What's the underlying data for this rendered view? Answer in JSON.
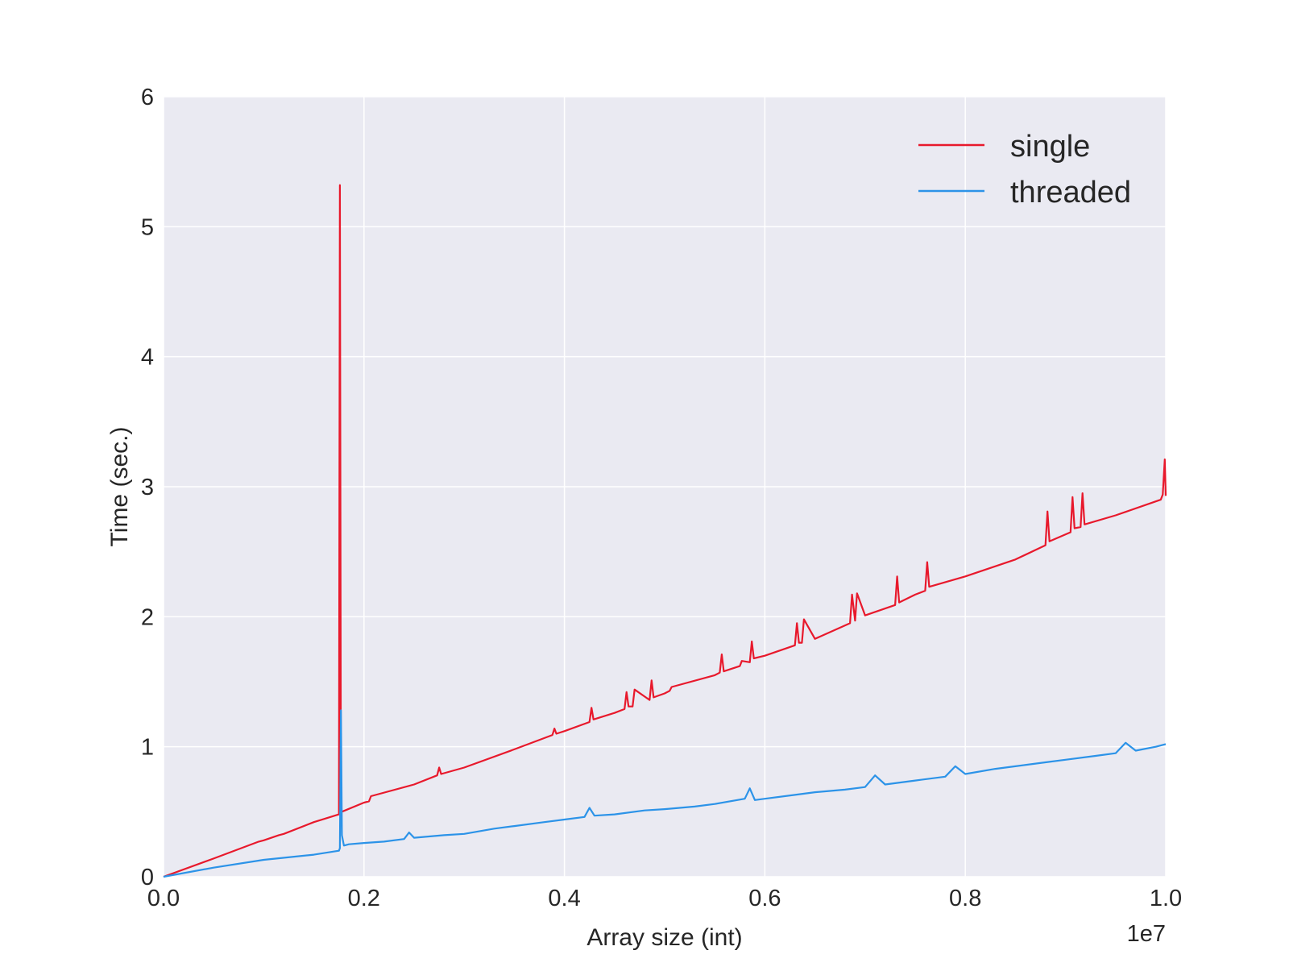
{
  "chart_data": {
    "type": "line",
    "title": "",
    "xlabel": "Array size (int)",
    "ylabel": "Time (sec.)",
    "x_offset_label": "1e7",
    "xlim": [
      0.0,
      1.0
    ],
    "ylim": [
      0,
      6
    ],
    "x_ticks": [
      "0.0",
      "0.2",
      "0.4",
      "0.6",
      "0.8",
      "1.0"
    ],
    "x_tick_values": [
      0.0,
      0.2,
      0.4,
      0.6,
      0.8,
      1.0
    ],
    "y_ticks": [
      "0",
      "1",
      "2",
      "3",
      "4",
      "5",
      "6"
    ],
    "y_tick_values": [
      0,
      1,
      2,
      3,
      4,
      5,
      6
    ],
    "grid": true,
    "legend_position": "top-right",
    "background_color": "#EAEAF2",
    "series": [
      {
        "name": "single",
        "color": "#E8192C",
        "x": [
          0.0,
          0.05,
          0.095,
          0.1,
          0.115,
          0.12,
          0.15,
          0.175,
          0.176,
          0.177,
          0.178,
          0.2,
          0.205,
          0.207,
          0.25,
          0.273,
          0.275,
          0.277,
          0.3,
          0.35,
          0.388,
          0.39,
          0.392,
          0.4,
          0.425,
          0.427,
          0.429,
          0.45,
          0.46,
          0.462,
          0.464,
          0.468,
          0.47,
          0.485,
          0.487,
          0.489,
          0.5,
          0.505,
          0.507,
          0.55,
          0.555,
          0.557,
          0.559,
          0.575,
          0.577,
          0.585,
          0.587,
          0.589,
          0.6,
          0.63,
          0.632,
          0.634,
          0.637,
          0.639,
          0.65,
          0.685,
          0.687,
          0.69,
          0.692,
          0.7,
          0.73,
          0.732,
          0.734,
          0.75,
          0.76,
          0.762,
          0.764,
          0.8,
          0.85,
          0.88,
          0.882,
          0.884,
          0.905,
          0.907,
          0.909,
          0.915,
          0.917,
          0.919,
          0.95,
          0.995,
          0.997,
          0.999,
          1.0
        ],
        "y": [
          0.0,
          0.14,
          0.27,
          0.28,
          0.32,
          0.33,
          0.42,
          0.48,
          5.32,
          0.49,
          0.5,
          0.57,
          0.58,
          0.62,
          0.71,
          0.78,
          0.84,
          0.79,
          0.84,
          0.98,
          1.09,
          1.14,
          1.1,
          1.12,
          1.19,
          1.3,
          1.21,
          1.26,
          1.29,
          1.42,
          1.31,
          1.31,
          1.44,
          1.36,
          1.51,
          1.38,
          1.41,
          1.43,
          1.46,
          1.55,
          1.57,
          1.71,
          1.58,
          1.62,
          1.66,
          1.65,
          1.81,
          1.68,
          1.7,
          1.78,
          1.95,
          1.8,
          1.8,
          1.98,
          1.83,
          1.95,
          2.17,
          1.97,
          2.18,
          2.01,
          2.09,
          2.31,
          2.11,
          2.17,
          2.2,
          2.42,
          2.23,
          2.31,
          2.44,
          2.55,
          2.81,
          2.58,
          2.65,
          2.92,
          2.68,
          2.69,
          2.95,
          2.71,
          2.78,
          2.9,
          2.94,
          3.21,
          2.93
        ]
      },
      {
        "name": "threaded",
        "color": "#2C93E8",
        "x": [
          0.0,
          0.05,
          0.1,
          0.15,
          0.175,
          0.176,
          0.177,
          0.178,
          0.18,
          0.185,
          0.2,
          0.22,
          0.24,
          0.245,
          0.25,
          0.28,
          0.3,
          0.33,
          0.35,
          0.38,
          0.4,
          0.42,
          0.425,
          0.43,
          0.45,
          0.48,
          0.5,
          0.53,
          0.55,
          0.58,
          0.585,
          0.59,
          0.6,
          0.63,
          0.65,
          0.68,
          0.7,
          0.71,
          0.72,
          0.75,
          0.78,
          0.79,
          0.8,
          0.83,
          0.85,
          0.88,
          0.9,
          0.93,
          0.95,
          0.96,
          0.97,
          0.99,
          1.0
        ],
        "y": [
          0.0,
          0.07,
          0.13,
          0.17,
          0.2,
          0.22,
          1.28,
          0.32,
          0.24,
          0.25,
          0.26,
          0.27,
          0.29,
          0.34,
          0.3,
          0.32,
          0.33,
          0.37,
          0.39,
          0.42,
          0.44,
          0.46,
          0.53,
          0.47,
          0.48,
          0.51,
          0.52,
          0.54,
          0.56,
          0.6,
          0.68,
          0.59,
          0.6,
          0.63,
          0.65,
          0.67,
          0.69,
          0.78,
          0.71,
          0.74,
          0.77,
          0.85,
          0.79,
          0.83,
          0.85,
          0.88,
          0.9,
          0.93,
          0.95,
          1.03,
          0.97,
          1.0,
          1.02
        ]
      }
    ]
  }
}
